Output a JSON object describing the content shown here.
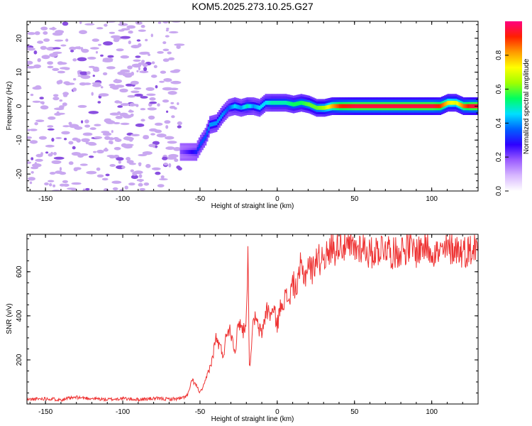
{
  "title": "KOM5.2025.273.10.25.G27",
  "colors": {
    "snr_line": "#ee3333",
    "noise_speckle": "#c9a8f0",
    "noise_core": "#8a4fe0",
    "colormap": [
      "#ffffff",
      "#d8b8ff",
      "#9b5cff",
      "#2e00ff",
      "#0060ff",
      "#00e0ff",
      "#00ff60",
      "#a0ff00",
      "#ffff00",
      "#ff9a00",
      "#ff2000",
      "#ff0080"
    ]
  },
  "chart_data": [
    {
      "id": "spectrogram",
      "type": "heatmap",
      "title": "KOM5.2025.273.10.25.G27",
      "xlabel": "Height of straight line (km)",
      "ylabel": "Frequency (Hz)",
      "xlim": [
        -162,
        130
      ],
      "ylim": [
        -25,
        25
      ],
      "x_ticks": [
        -150,
        -100,
        -50,
        0,
        50,
        100
      ],
      "y_ticks": [
        -20,
        -10,
        0,
        10,
        20
      ],
      "colorbar": {
        "label": "Normalized spectral amplitude",
        "range": [
          0,
          1
        ],
        "ticks": [
          0.0,
          0.2,
          0.4,
          0.6,
          0.8
        ]
      },
      "noise_region_x": [
        -162,
        -63
      ],
      "ridge": {
        "x": [
          -63,
          -58,
          -53,
          -50,
          -47,
          -44,
          -40,
          -36,
          -32,
          -28,
          -24,
          -20,
          -16,
          -12,
          -8,
          -4,
          0,
          5,
          10,
          15,
          20,
          25,
          30,
          35,
          40,
          50,
          60,
          70,
          80,
          90,
          100,
          105,
          110,
          115,
          120,
          125,
          130
        ],
        "freq": [
          -13.5,
          -13.5,
          -13.5,
          -11,
          -9,
          -5.5,
          -5,
          -2.5,
          -0.5,
          0,
          -0.5,
          0,
          0,
          -0.5,
          1,
          1,
          1,
          1,
          0.5,
          1,
          0.5,
          -0.5,
          -0.5,
          0,
          0,
          0,
          0,
          0,
          0,
          0,
          0,
          0,
          1,
          1,
          0,
          0,
          0
        ],
        "amp": [
          0.2,
          0.25,
          0.3,
          0.35,
          0.35,
          0.4,
          0.4,
          0.4,
          0.35,
          0.45,
          0.4,
          0.5,
          0.4,
          0.45,
          0.45,
          0.5,
          0.5,
          0.5,
          0.55,
          0.55,
          0.6,
          0.6,
          0.65,
          0.8,
          0.9,
          0.95,
          0.95,
          0.95,
          0.95,
          0.95,
          0.95,
          0.9,
          0.75,
          0.7,
          0.85,
          0.95,
          0.95
        ]
      }
    },
    {
      "id": "snr",
      "type": "line",
      "xlabel": "Height of straight line (km)",
      "ylabel": "SNR (v/v)",
      "xlim": [
        -162,
        130
      ],
      "ylim": [
        0,
        770
      ],
      "x_ticks": [
        -150,
        -100,
        -50,
        0,
        50,
        100
      ],
      "y_ticks": [
        200,
        400,
        600
      ],
      "series": [
        {
          "name": "SNR",
          "x": [
            -162,
            -150,
            -140,
            -130,
            -120,
            -110,
            -100,
            -90,
            -80,
            -70,
            -62,
            -58,
            -55,
            -52,
            -50,
            -47,
            -45,
            -42,
            -40,
            -37,
            -35,
            -32,
            -30,
            -27,
            -25,
            -22,
            -20,
            -19,
            -18,
            -15,
            -12,
            -10,
            -7,
            -5,
            -2,
            0,
            3,
            5,
            8,
            10,
            13,
            15,
            18,
            20,
            23,
            25,
            28,
            30,
            33,
            35,
            38,
            40,
            43,
            45,
            48,
            50,
            55,
            60,
            65,
            70,
            75,
            80,
            85,
            90,
            95,
            100,
            105,
            110,
            115,
            120,
            125,
            130
          ],
          "y": [
            20,
            25,
            20,
            30,
            25,
            20,
            25,
            20,
            25,
            22,
            25,
            40,
            110,
            80,
            50,
            90,
            140,
            200,
            300,
            260,
            220,
            350,
            330,
            240,
            380,
            330,
            390,
            705,
            160,
            400,
            340,
            320,
            430,
            410,
            420,
            360,
            470,
            480,
            480,
            550,
            520,
            620,
            580,
            640,
            600,
            670,
            650,
            690,
            660,
            720,
            700,
            740,
            720,
            700,
            710,
            700,
            720,
            680,
            700,
            720,
            680,
            700,
            710,
            690,
            720,
            700,
            680,
            700,
            710,
            690,
            700,
            715
          ]
        }
      ]
    }
  ]
}
